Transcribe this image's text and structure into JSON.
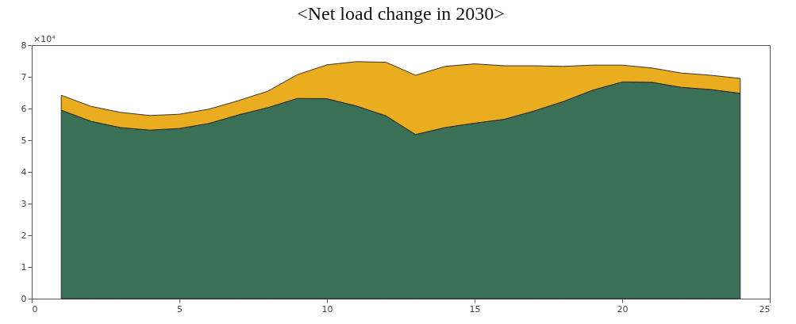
{
  "chart_data": {
    "type": "area",
    "title": "<Net load change in 2030>",
    "stacked": true,
    "x": [
      1,
      2,
      3,
      4,
      5,
      6,
      7,
      8,
      9,
      10,
      11,
      12,
      13,
      14,
      15,
      16,
      17,
      18,
      19,
      20,
      21,
      22,
      23,
      24
    ],
    "series": [
      {
        "color": "#3a7055",
        "values": [
          5.95,
          5.6,
          5.4,
          5.32,
          5.37,
          5.53,
          5.8,
          6.03,
          6.32,
          6.31,
          6.08,
          5.77,
          5.18,
          5.4,
          5.54,
          5.66,
          5.92,
          6.22,
          6.58,
          6.84,
          6.83,
          6.67,
          6.6,
          6.48
        ]
      },
      {
        "color": "#ebad20",
        "values": [
          0.47,
          0.47,
          0.48,
          0.46,
          0.45,
          0.45,
          0.45,
          0.52,
          0.75,
          1.07,
          1.4,
          1.69,
          1.87,
          1.93,
          1.87,
          1.69,
          1.43,
          1.11,
          0.79,
          0.53,
          0.45,
          0.45,
          0.45,
          0.47
        ]
      }
    ],
    "xlim": [
      0,
      25
    ],
    "xticks": [
      0,
      5,
      10,
      15,
      20,
      25
    ],
    "ylim": [
      0,
      8
    ],
    "yticks": [
      0,
      1,
      2,
      3,
      4,
      5,
      6,
      7,
      8
    ],
    "annotations": [
      "×10⁴"
    ],
    "grid": false,
    "legend": false
  }
}
